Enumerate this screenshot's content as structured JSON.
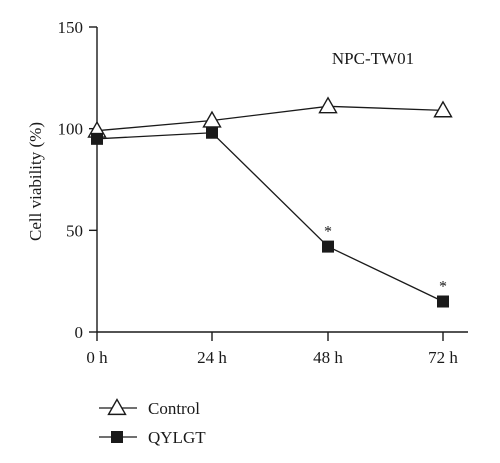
{
  "chart_data": {
    "type": "line",
    "categories": [
      "0 h",
      "24 h",
      "48 h",
      "72 h"
    ],
    "ylabel": "Cell viability (%)",
    "ylim": [
      0,
      150
    ],
    "yticks": [
      "0",
      "50",
      "100",
      "150"
    ],
    "annotation": "NPC-TW01",
    "grid": false,
    "legend_position": "bottom-left",
    "series": [
      {
        "name": "Control",
        "marker": "open-triangle",
        "color": "#1a1a1a",
        "values": [
          99,
          104,
          111,
          109
        ],
        "significance": [
          "",
          "",
          "",
          ""
        ]
      },
      {
        "name": "QYLGT",
        "marker": "filled-square",
        "color": "#1a1a1a",
        "values": [
          95,
          98,
          42,
          15
        ],
        "significance": [
          "",
          "",
          "*",
          "*"
        ]
      }
    ]
  }
}
